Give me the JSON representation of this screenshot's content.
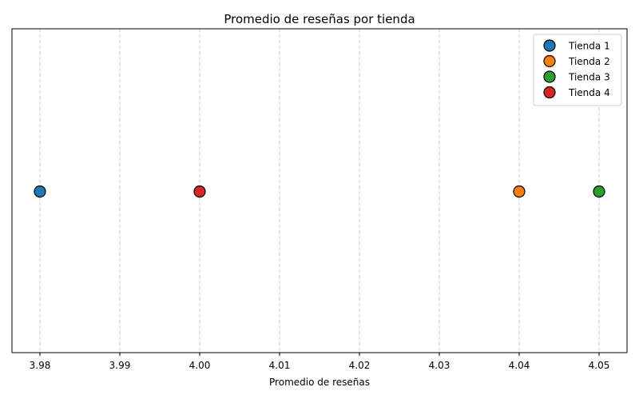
{
  "chart_data": {
    "type": "scatter",
    "title": "Promedio de reseñas por tienda",
    "xlabel": "Promedio de reseñas",
    "ylabel": "",
    "xlim": [
      3.9765,
      4.0535
    ],
    "xticks": [
      "3.98",
      "3.99",
      "4.00",
      "4.01",
      "4.02",
      "4.03",
      "4.04",
      "4.05"
    ],
    "xtick_values": [
      3.98,
      3.99,
      4.0,
      4.01,
      4.02,
      4.03,
      4.04,
      4.05
    ],
    "grid": "x",
    "legend_position": "top-right",
    "series": [
      {
        "name": "Tienda 1",
        "x": 3.98,
        "color": "#1f77b4"
      },
      {
        "name": "Tienda 2",
        "x": 4.04,
        "color": "#ff7f0e"
      },
      {
        "name": "Tienda 3",
        "x": 4.05,
        "color": "#2ca02c"
      },
      {
        "name": "Tienda 4",
        "x": 4.0,
        "color": "#d62728"
      }
    ]
  }
}
